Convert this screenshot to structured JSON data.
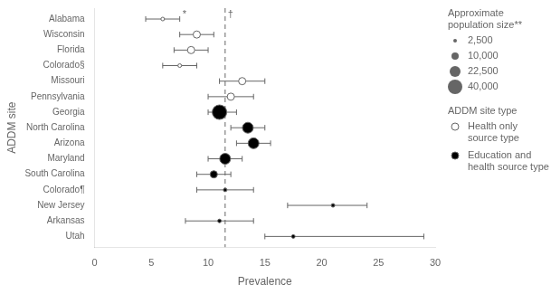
{
  "chart_data": {
    "type": "forest",
    "xlabel": "Prevalence",
    "ylabel": "ADDM site",
    "categories": [
      "Alabama",
      "Wisconsin",
      "Florida",
      "Colorado§",
      "Missouri",
      "Pennsylvania",
      "Georgia",
      "North Carolina",
      "Arizona",
      "Maryland",
      "South Carolina",
      "Colorado¶",
      "New Jersey",
      "Arkansas",
      "Utah"
    ],
    "series": [
      {
        "name": "Health only\nsource type",
        "color": "#ffffff",
        "values": [
          6.0,
          9.0,
          8.5,
          7.5,
          13.0,
          12.0,
          null,
          null,
          null,
          null,
          null,
          null,
          null,
          null,
          null
        ],
        "ci_low": [
          4.5,
          7.5,
          7.0,
          6.0,
          11.0,
          10.0,
          null,
          null,
          null,
          null,
          null,
          null,
          null,
          null,
          null
        ],
        "ci_high": [
          7.5,
          10.5,
          10.0,
          9.0,
          15.0,
          14.0,
          null,
          null,
          null,
          null,
          null,
          null,
          null,
          null,
          null
        ],
        "population": [
          2500,
          10000,
          10000,
          2500,
          10000,
          10000,
          null,
          null,
          null,
          null,
          null,
          null,
          null,
          null,
          null
        ]
      },
      {
        "name": "Education and\nhealth source type",
        "color": "#000000",
        "values": [
          null,
          null,
          null,
          null,
          null,
          null,
          11.0,
          13.5,
          14.0,
          11.5,
          10.5,
          11.5,
          21.0,
          11.0,
          17.5
        ],
        "ci_low": [
          null,
          null,
          null,
          null,
          null,
          null,
          10.0,
          12.0,
          12.5,
          10.0,
          9.0,
          9.0,
          17.0,
          8.0,
          15.0
        ],
        "ci_high": [
          null,
          null,
          null,
          null,
          null,
          null,
          12.5,
          15.0,
          15.5,
          13.0,
          12.0,
          14.0,
          24.0,
          14.0,
          29.0
        ],
        "population": [
          null,
          null,
          null,
          null,
          null,
          null,
          40000,
          22500,
          22500,
          22500,
          10000,
          2500,
          2500,
          2500,
          2500
        ]
      }
    ],
    "legend_title": "ADDM site type",
    "size_legend": {
      "title": "Approximate\npopulation size**",
      "values": [
        {
          "value": 2500,
          "label": "2,500"
        },
        {
          "value": 10000,
          "label": "10,000"
        },
        {
          "value": 22500,
          "label": "22,500"
        },
        {
          "value": 40000,
          "label": "40,000"
        }
      ]
    },
    "reference_line": {
      "x": 11.5,
      "label": "†"
    },
    "annotations": [
      {
        "text": "*",
        "category": "Alabama",
        "x": 7.5
      }
    ],
    "xlim": [
      0,
      30
    ],
    "xticks": [
      0,
      5,
      10,
      15,
      20,
      25,
      30
    ],
    "grid": false,
    "legend": "right"
  }
}
